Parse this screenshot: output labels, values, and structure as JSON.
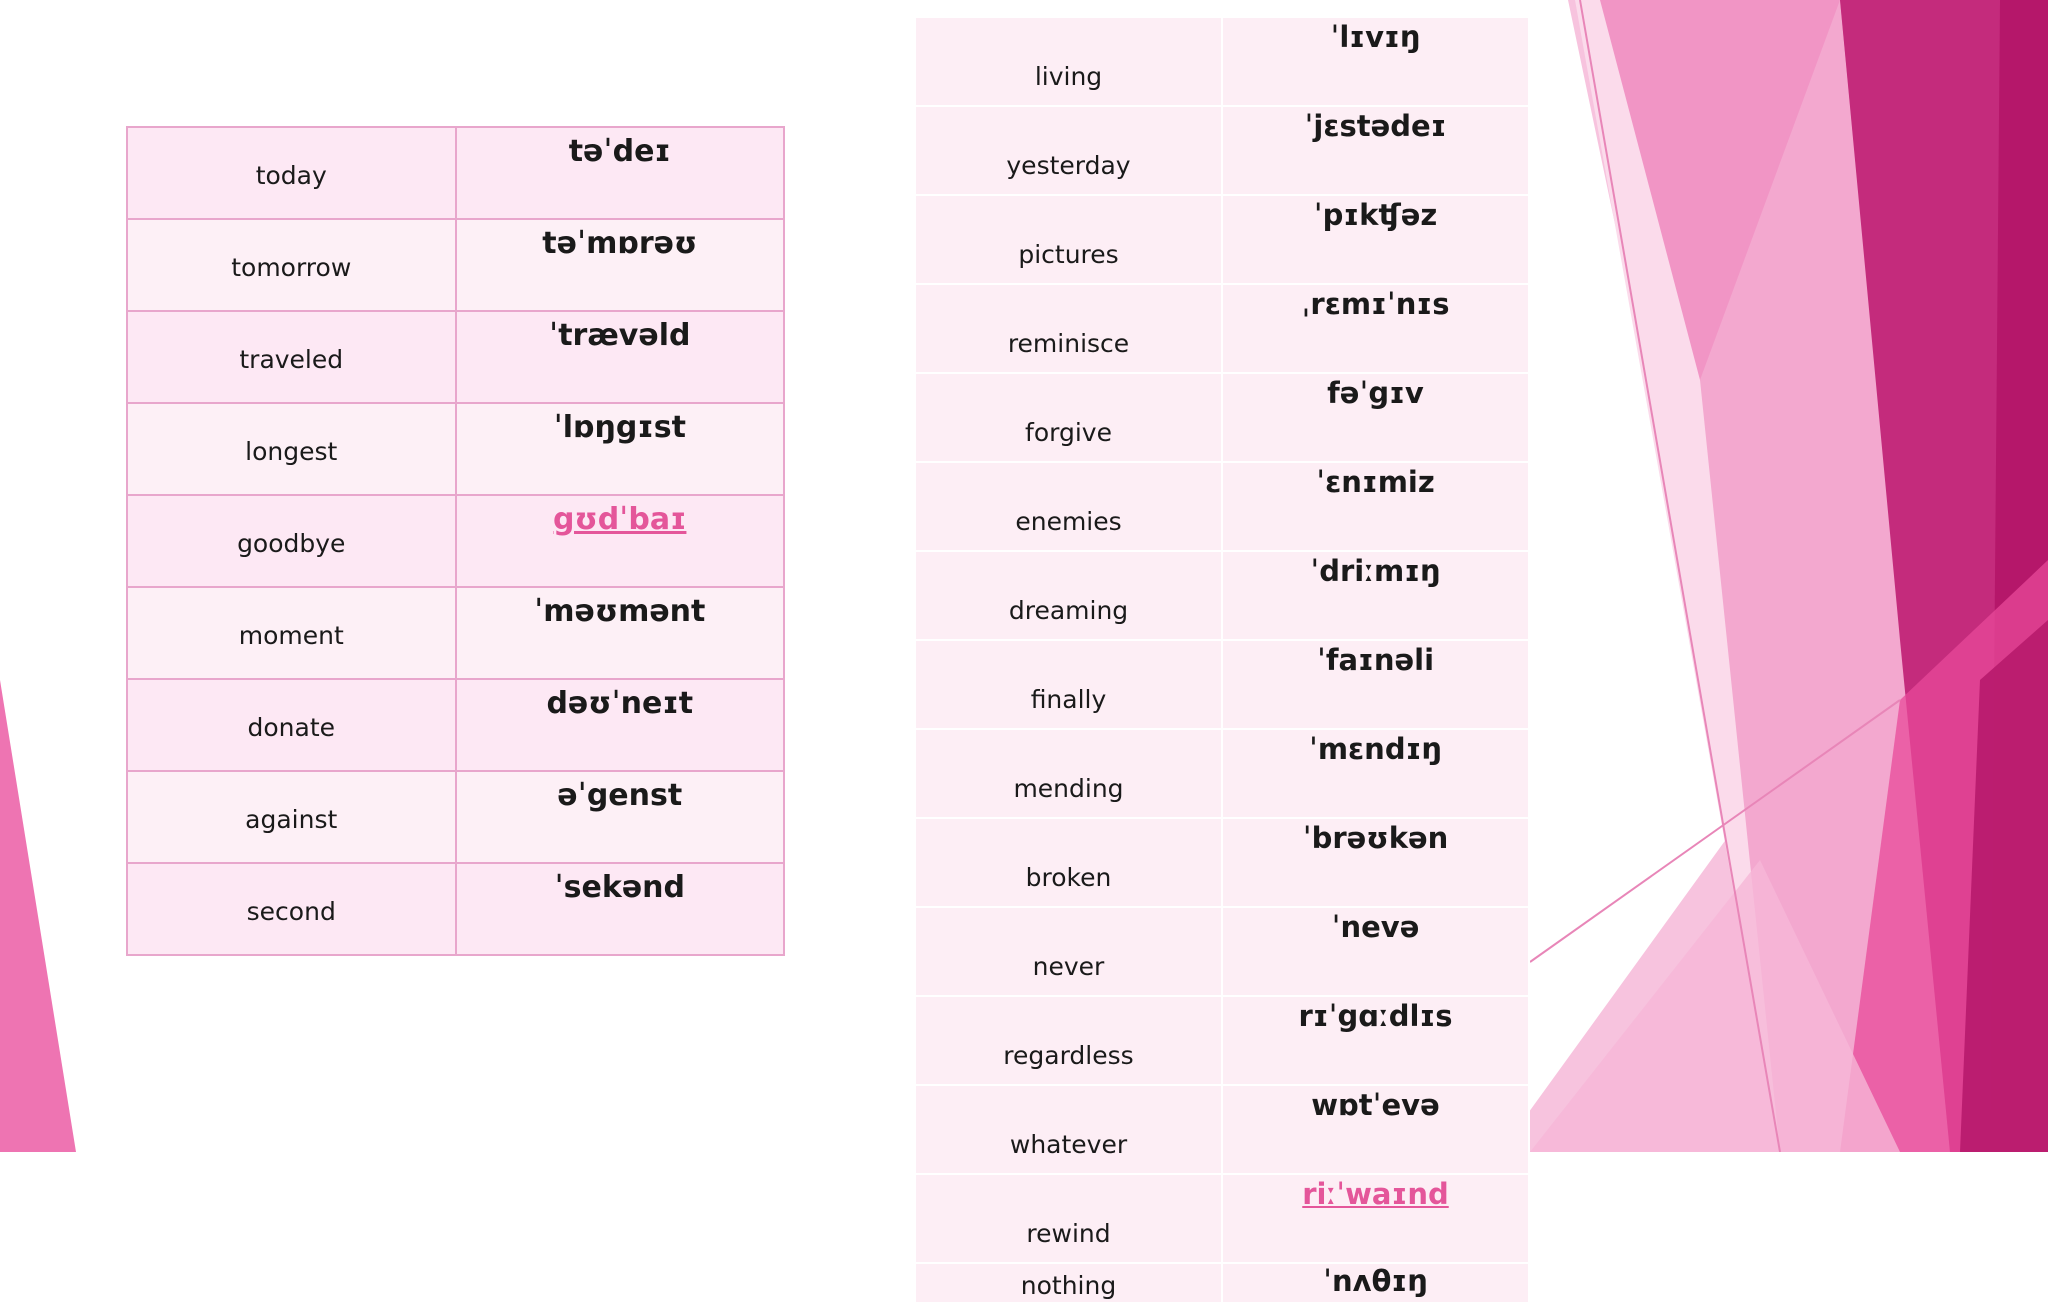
{
  "left_table": [
    {
      "word": "today",
      "ipa": "təˈdeɪ",
      "link": false
    },
    {
      "word": "tomorrow",
      "ipa": "təˈmɒrəʊ",
      "link": false
    },
    {
      "word": "traveled",
      "ipa": "ˈtrævəld",
      "link": false
    },
    {
      "word": "longest",
      "ipa": "ˈlɒŋgɪst",
      "link": false
    },
    {
      "word": "goodbye",
      "ipa": "gʊdˈbaɪ",
      "link": true
    },
    {
      "word": "moment",
      "ipa": "ˈməʊmənt",
      "link": false
    },
    {
      "word": "donate",
      "ipa": "dəʊˈneɪt",
      "link": false
    },
    {
      "word": "against",
      "ipa": "əˈgenst",
      "link": false
    },
    {
      "word": "second",
      "ipa": "ˈsekənd",
      "link": false
    }
  ],
  "right_table": [
    {
      "word": "living",
      "ipa": "ˈlɪvɪŋ",
      "link": false
    },
    {
      "word": "yesterday",
      "ipa": "ˈjɛstədeɪ",
      "link": false
    },
    {
      "word": "pictures",
      "ipa": "ˈpɪkʧəz",
      "link": false
    },
    {
      "word": "reminisce",
      "ipa": "ˌrɛmɪˈnɪs",
      "link": false
    },
    {
      "word": "forgive",
      "ipa": "fəˈgɪv",
      "link": false
    },
    {
      "word": "enemies",
      "ipa": "ˈɛnɪmiz",
      "link": false
    },
    {
      "word": "dreaming",
      "ipa": "ˈdriːmɪŋ",
      "link": false
    },
    {
      "word": "finally",
      "ipa": "ˈfaɪnəli",
      "link": false
    },
    {
      "word": "mending",
      "ipa": "ˈmɛndɪŋ",
      "link": false
    },
    {
      "word": "broken",
      "ipa": "ˈbrəʊkən",
      "link": false
    },
    {
      "word": "never",
      "ipa": "ˈnevə",
      "link": false
    },
    {
      "word": "regardless",
      "ipa": "rɪˈgɑːdlɪs",
      "link": false
    },
    {
      "word": "whatever",
      "ipa": "wɒtˈevə",
      "link": false
    },
    {
      "word": "rewind",
      "ipa": "riːˈwaɪnd",
      "link": true
    },
    {
      "word": "nothing",
      "ipa": "ˈnʌθɪŋ",
      "link": false
    }
  ],
  "colors": {
    "accent": "#e4569a",
    "decor_dark": "#b5176a",
    "decor_mid": "#e86aaa",
    "decor_light": "#f3a8cf",
    "table_border": "#e8a6cc"
  }
}
